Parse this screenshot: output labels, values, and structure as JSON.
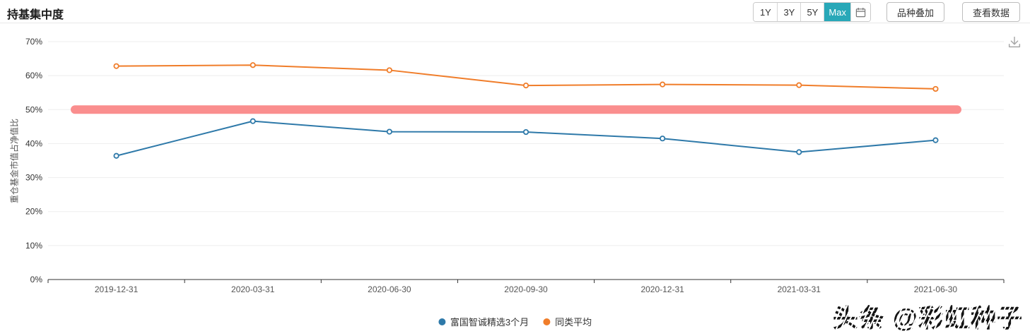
{
  "header": {
    "title": "持基集中度",
    "range_buttons": [
      "1Y",
      "3Y",
      "5Y",
      "Max"
    ],
    "active_range": "Max",
    "calendar_icon": "calendar-icon",
    "overlay_button": "品种叠加",
    "view_data_button": "查看数据"
  },
  "colors": {
    "active_range_bg": "#28a8b8",
    "fund_series": "#2e79a9",
    "average_series": "#f07d2a",
    "reference_band": "#fa8e8e",
    "gridline": "#eeeeee",
    "axis_line": "#333333",
    "tick_label": "#555555"
  },
  "chart_data": {
    "type": "line",
    "categories": [
      "2019-12-31",
      "2020-03-31",
      "2020-06-30",
      "2020-09-30",
      "2020-12-31",
      "2021-03-31",
      "2021-06-30"
    ],
    "series": [
      {
        "name": "富国智诚精选3个月",
        "color": "#2e79a9",
        "values": [
          36.4,
          46.6,
          43.5,
          43.4,
          41.5,
          37.5,
          41.0
        ]
      },
      {
        "name": "同类平均",
        "color": "#f07d2a",
        "values": [
          62.8,
          63.1,
          61.6,
          57.1,
          57.4,
          57.2,
          56.1
        ]
      }
    ],
    "reference_band": {
      "value": 50,
      "color": "#fa8e8e"
    },
    "title": "持基集中度",
    "xlabel": "",
    "ylabel": "重仓基金市值占净值比",
    "ylim": [
      0,
      70
    ],
    "ytick_step": 10,
    "ytick_format": "percent",
    "grid": true,
    "legend_position": "bottom-center"
  },
  "download_icon": "download-icon",
  "watermark": "头条 @彩虹种子"
}
